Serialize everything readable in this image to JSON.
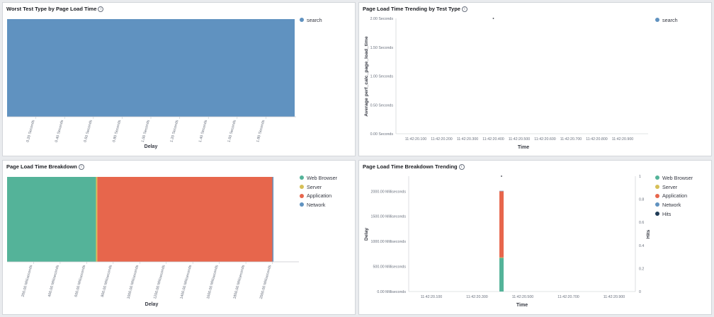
{
  "panels": {
    "p1": {
      "title": "Worst Test Type by Page Load Time"
    },
    "p2": {
      "title": "Page Load Time Trending by Test Type"
    },
    "p3": {
      "title": "Page Load Time Breakdown"
    },
    "p4": {
      "title": "Page Load Time Breakdown Trending"
    }
  },
  "info_glyph": "i",
  "chart_data": [
    {
      "type": "bar",
      "orientation": "horizontal",
      "title": "Worst Test Type by Page Load Time",
      "xlabel": "Delay",
      "ylabel": "",
      "xticks": [
        "0.20 Seconds",
        "0.40 Seconds",
        "0.60 Seconds",
        "0.80 Seconds",
        "1.00 Seconds",
        "1.20 Seconds",
        "1.40 Seconds",
        "1.60 Seconds",
        "1.80 Seconds"
      ],
      "xlim": [
        0,
        2.0
      ],
      "series": [
        {
          "name": "search",
          "values": [
            2.0
          ],
          "color": "#6092c0"
        }
      ],
      "legend": "right",
      "grid": false
    },
    {
      "type": "line",
      "title": "Page Load Time Trending by Test Type",
      "xlabel": "Time",
      "ylabel": "Average perf_calc_page_load_time",
      "xticks": [
        "11:42:20.100",
        "11:42:20.200",
        "11:42:20.300",
        "11:42:20.400",
        "11:42:20.500",
        "11:42:20.600",
        "11:42:20.700",
        "11:42:20.800",
        "11:42:20.900"
      ],
      "yticks": [
        "0.00 Seconds",
        "0.50 Seconds",
        "1.00 Seconds",
        "1.50 Seconds",
        "2.00 Seconds"
      ],
      "ylim": [
        0,
        2.0
      ],
      "series": [
        {
          "name": "search",
          "x": [
            "11:42:20.400"
          ],
          "values": [
            2.0
          ],
          "color": "#6092c0"
        }
      ],
      "legend": "right",
      "grid": false
    },
    {
      "type": "bar",
      "orientation": "horizontal",
      "stacked": true,
      "title": "Page Load Time Breakdown",
      "xlabel": "Delay",
      "ylabel": "",
      "xticks": [
        "200.00 Milliseconds",
        "400.00 Milliseconds",
        "600.00 Milliseconds",
        "800.00 Milliseconds",
        "1000.00 Milliseconds",
        "1200.00 Milliseconds",
        "1400.00 Milliseconds",
        "1600.00 Milliseconds",
        "1800.00 Milliseconds",
        "2000.00 Milliseconds"
      ],
      "xlim": [
        0,
        2200
      ],
      "series": [
        {
          "name": "Web Browser",
          "values": [
            670
          ],
          "color": "#54b399"
        },
        {
          "name": "Server",
          "values": [
            10
          ],
          "color": "#d6bf57"
        },
        {
          "name": "Application",
          "values": [
            1320
          ],
          "color": "#e7664c"
        },
        {
          "name": "Network",
          "values": [
            8
          ],
          "color": "#6092c0"
        }
      ],
      "legend": "right",
      "grid": false
    },
    {
      "type": "bar",
      "stacked": true,
      "title": "Page Load Time Breakdown Trending",
      "xlabel": "Time",
      "ylabel": "Delay",
      "y2label": "Hits",
      "xticks": [
        "11:42:20.100",
        "11:42:20.300",
        "11:42:20.500",
        "11:42:20.700",
        "11:42:20.900"
      ],
      "yticks": [
        "0.00 Milliseconds",
        "500.00 Milliseconds",
        "1000.00 Milliseconds",
        "1500.00 Milliseconds",
        "2000.00 Milliseconds"
      ],
      "y2ticks": [
        "0",
        "0.2",
        "0.4",
        "0.6",
        "0.8",
        "1"
      ],
      "ylim": [
        0,
        2300
      ],
      "y2lim": [
        0,
        1
      ],
      "series": [
        {
          "name": "Web Browser",
          "x": [
            "11:42:20.400"
          ],
          "values": [
            670
          ],
          "color": "#54b399"
        },
        {
          "name": "Server",
          "x": [
            "11:42:20.400"
          ],
          "values": [
            10
          ],
          "color": "#d6bf57"
        },
        {
          "name": "Application",
          "x": [
            "11:42:20.400"
          ],
          "values": [
            1320
          ],
          "color": "#e7664c"
        },
        {
          "name": "Network",
          "x": [
            "11:42:20.400"
          ],
          "values": [
            8
          ],
          "color": "#6092c0"
        },
        {
          "name": "Hits",
          "x": [
            "11:42:20.400"
          ],
          "values": [
            1
          ],
          "color": "#1f3b56",
          "type": "line"
        }
      ],
      "legend": "right",
      "grid": false
    }
  ]
}
